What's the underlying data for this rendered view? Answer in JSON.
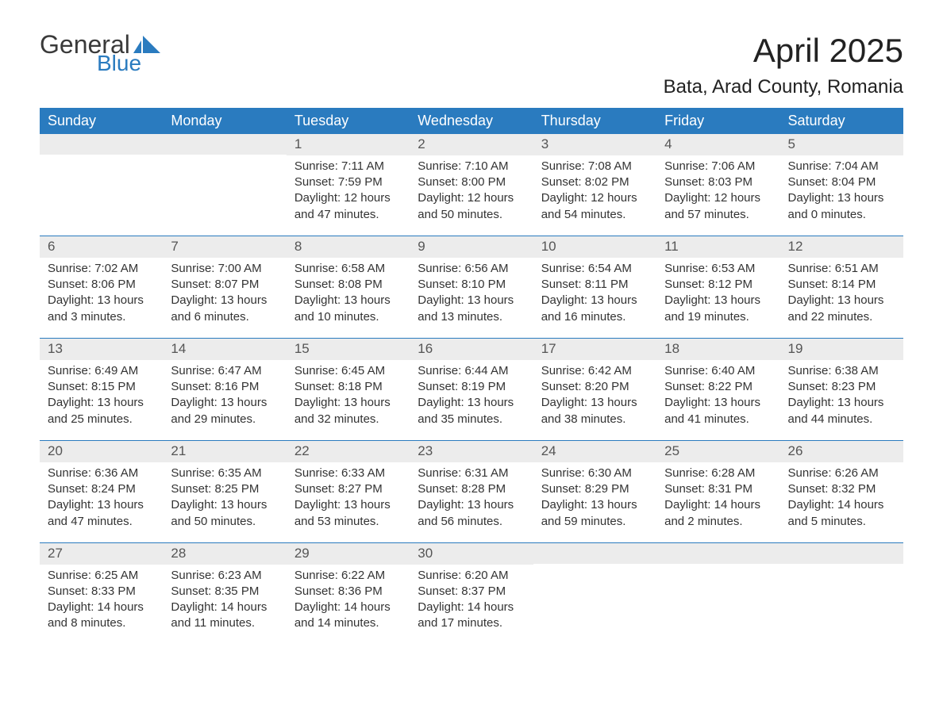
{
  "logo": {
    "word1": "General",
    "word2": "Blue",
    "text_color_word1": "#3a3a3a",
    "text_color_word2": "#2a7bbf",
    "flag_color": "#2a7bbf"
  },
  "header": {
    "month_title": "April 2025",
    "location": "Bata, Arad County, Romania",
    "title_fontsize_pt": 32,
    "location_fontsize_pt": 18
  },
  "colors": {
    "header_bar_bg": "#2a7bbf",
    "header_bar_text": "#ffffff",
    "daynum_bg": "#ececec",
    "daynum_text": "#555555",
    "body_text": "#333333",
    "week_divider": "#2a7bbf",
    "page_bg": "#ffffff"
  },
  "weekdays": [
    "Sunday",
    "Monday",
    "Tuesday",
    "Wednesday",
    "Thursday",
    "Friday",
    "Saturday"
  ],
  "weeks": [
    [
      {
        "day": "",
        "sunrise": "",
        "sunset": "",
        "daylight1": "",
        "daylight2": ""
      },
      {
        "day": "",
        "sunrise": "",
        "sunset": "",
        "daylight1": "",
        "daylight2": ""
      },
      {
        "day": "1",
        "sunrise": "Sunrise: 7:11 AM",
        "sunset": "Sunset: 7:59 PM",
        "daylight1": "Daylight: 12 hours",
        "daylight2": "and 47 minutes."
      },
      {
        "day": "2",
        "sunrise": "Sunrise: 7:10 AM",
        "sunset": "Sunset: 8:00 PM",
        "daylight1": "Daylight: 12 hours",
        "daylight2": "and 50 minutes."
      },
      {
        "day": "3",
        "sunrise": "Sunrise: 7:08 AM",
        "sunset": "Sunset: 8:02 PM",
        "daylight1": "Daylight: 12 hours",
        "daylight2": "and 54 minutes."
      },
      {
        "day": "4",
        "sunrise": "Sunrise: 7:06 AM",
        "sunset": "Sunset: 8:03 PM",
        "daylight1": "Daylight: 12 hours",
        "daylight2": "and 57 minutes."
      },
      {
        "day": "5",
        "sunrise": "Sunrise: 7:04 AM",
        "sunset": "Sunset: 8:04 PM",
        "daylight1": "Daylight: 13 hours",
        "daylight2": "and 0 minutes."
      }
    ],
    [
      {
        "day": "6",
        "sunrise": "Sunrise: 7:02 AM",
        "sunset": "Sunset: 8:06 PM",
        "daylight1": "Daylight: 13 hours",
        "daylight2": "and 3 minutes."
      },
      {
        "day": "7",
        "sunrise": "Sunrise: 7:00 AM",
        "sunset": "Sunset: 8:07 PM",
        "daylight1": "Daylight: 13 hours",
        "daylight2": "and 6 minutes."
      },
      {
        "day": "8",
        "sunrise": "Sunrise: 6:58 AM",
        "sunset": "Sunset: 8:08 PM",
        "daylight1": "Daylight: 13 hours",
        "daylight2": "and 10 minutes."
      },
      {
        "day": "9",
        "sunrise": "Sunrise: 6:56 AM",
        "sunset": "Sunset: 8:10 PM",
        "daylight1": "Daylight: 13 hours",
        "daylight2": "and 13 minutes."
      },
      {
        "day": "10",
        "sunrise": "Sunrise: 6:54 AM",
        "sunset": "Sunset: 8:11 PM",
        "daylight1": "Daylight: 13 hours",
        "daylight2": "and 16 minutes."
      },
      {
        "day": "11",
        "sunrise": "Sunrise: 6:53 AM",
        "sunset": "Sunset: 8:12 PM",
        "daylight1": "Daylight: 13 hours",
        "daylight2": "and 19 minutes."
      },
      {
        "day": "12",
        "sunrise": "Sunrise: 6:51 AM",
        "sunset": "Sunset: 8:14 PM",
        "daylight1": "Daylight: 13 hours",
        "daylight2": "and 22 minutes."
      }
    ],
    [
      {
        "day": "13",
        "sunrise": "Sunrise: 6:49 AM",
        "sunset": "Sunset: 8:15 PM",
        "daylight1": "Daylight: 13 hours",
        "daylight2": "and 25 minutes."
      },
      {
        "day": "14",
        "sunrise": "Sunrise: 6:47 AM",
        "sunset": "Sunset: 8:16 PM",
        "daylight1": "Daylight: 13 hours",
        "daylight2": "and 29 minutes."
      },
      {
        "day": "15",
        "sunrise": "Sunrise: 6:45 AM",
        "sunset": "Sunset: 8:18 PM",
        "daylight1": "Daylight: 13 hours",
        "daylight2": "and 32 minutes."
      },
      {
        "day": "16",
        "sunrise": "Sunrise: 6:44 AM",
        "sunset": "Sunset: 8:19 PM",
        "daylight1": "Daylight: 13 hours",
        "daylight2": "and 35 minutes."
      },
      {
        "day": "17",
        "sunrise": "Sunrise: 6:42 AM",
        "sunset": "Sunset: 8:20 PM",
        "daylight1": "Daylight: 13 hours",
        "daylight2": "and 38 minutes."
      },
      {
        "day": "18",
        "sunrise": "Sunrise: 6:40 AM",
        "sunset": "Sunset: 8:22 PM",
        "daylight1": "Daylight: 13 hours",
        "daylight2": "and 41 minutes."
      },
      {
        "day": "19",
        "sunrise": "Sunrise: 6:38 AM",
        "sunset": "Sunset: 8:23 PM",
        "daylight1": "Daylight: 13 hours",
        "daylight2": "and 44 minutes."
      }
    ],
    [
      {
        "day": "20",
        "sunrise": "Sunrise: 6:36 AM",
        "sunset": "Sunset: 8:24 PM",
        "daylight1": "Daylight: 13 hours",
        "daylight2": "and 47 minutes."
      },
      {
        "day": "21",
        "sunrise": "Sunrise: 6:35 AM",
        "sunset": "Sunset: 8:25 PM",
        "daylight1": "Daylight: 13 hours",
        "daylight2": "and 50 minutes."
      },
      {
        "day": "22",
        "sunrise": "Sunrise: 6:33 AM",
        "sunset": "Sunset: 8:27 PM",
        "daylight1": "Daylight: 13 hours",
        "daylight2": "and 53 minutes."
      },
      {
        "day": "23",
        "sunrise": "Sunrise: 6:31 AM",
        "sunset": "Sunset: 8:28 PM",
        "daylight1": "Daylight: 13 hours",
        "daylight2": "and 56 minutes."
      },
      {
        "day": "24",
        "sunrise": "Sunrise: 6:30 AM",
        "sunset": "Sunset: 8:29 PM",
        "daylight1": "Daylight: 13 hours",
        "daylight2": "and 59 minutes."
      },
      {
        "day": "25",
        "sunrise": "Sunrise: 6:28 AM",
        "sunset": "Sunset: 8:31 PM",
        "daylight1": "Daylight: 14 hours",
        "daylight2": "and 2 minutes."
      },
      {
        "day": "26",
        "sunrise": "Sunrise: 6:26 AM",
        "sunset": "Sunset: 8:32 PM",
        "daylight1": "Daylight: 14 hours",
        "daylight2": "and 5 minutes."
      }
    ],
    [
      {
        "day": "27",
        "sunrise": "Sunrise: 6:25 AM",
        "sunset": "Sunset: 8:33 PM",
        "daylight1": "Daylight: 14 hours",
        "daylight2": "and 8 minutes."
      },
      {
        "day": "28",
        "sunrise": "Sunrise: 6:23 AM",
        "sunset": "Sunset: 8:35 PM",
        "daylight1": "Daylight: 14 hours",
        "daylight2": "and 11 minutes."
      },
      {
        "day": "29",
        "sunrise": "Sunrise: 6:22 AM",
        "sunset": "Sunset: 8:36 PM",
        "daylight1": "Daylight: 14 hours",
        "daylight2": "and 14 minutes."
      },
      {
        "day": "30",
        "sunrise": "Sunrise: 6:20 AM",
        "sunset": "Sunset: 8:37 PM",
        "daylight1": "Daylight: 14 hours",
        "daylight2": "and 17 minutes."
      },
      {
        "day": "",
        "sunrise": "",
        "sunset": "",
        "daylight1": "",
        "daylight2": ""
      },
      {
        "day": "",
        "sunrise": "",
        "sunset": "",
        "daylight1": "",
        "daylight2": ""
      },
      {
        "day": "",
        "sunrise": "",
        "sunset": "",
        "daylight1": "",
        "daylight2": ""
      }
    ]
  ]
}
